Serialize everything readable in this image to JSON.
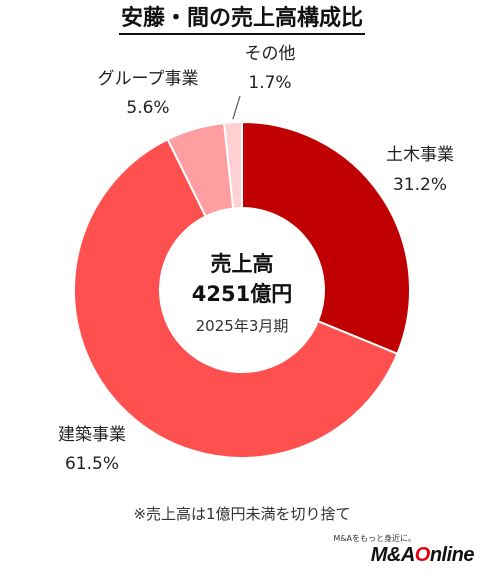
{
  "chart_data": {
    "type": "pie",
    "title": "安藤・間の売上高構成比",
    "categories": [
      "土木事業",
      "建築事業",
      "グループ事業",
      "その他"
    ],
    "values": [
      31.2,
      61.5,
      5.6,
      1.7
    ],
    "value_labels": [
      "31.2%",
      "61.5%",
      "5.6%",
      "1.7%"
    ],
    "colors": [
      "#c00000",
      "#ff5050",
      "#ff9ea0",
      "#ffd0d2"
    ],
    "center": {
      "line1": "売上高",
      "line2": "4251億円",
      "line3": "2025年3月期"
    },
    "legend": "none"
  },
  "footnote": "※売上高は1億円未満を切り捨て",
  "brand": {
    "tagline": "M&Aをもっと身近に。",
    "name_prefix": "M&A",
    "name_accent": "O",
    "name_suffix": "nline"
  }
}
